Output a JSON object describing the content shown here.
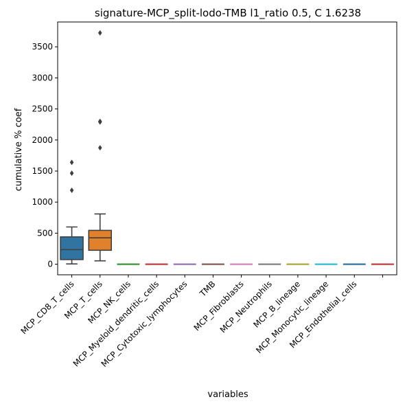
{
  "chart_data": {
    "type": "box",
    "title": "signature-MCP_split-lodo-TMB l1_ratio 0.5, C 1.6238",
    "xlabel": "variables",
    "ylabel": "cumulative % coef",
    "ylim": [
      -170,
      3900
    ],
    "yticks": [
      0,
      500,
      1000,
      1500,
      2000,
      2500,
      3000,
      3500
    ],
    "grid": false,
    "categories": [
      "MCP_CD8_T_cells",
      "MCP_T_cells",
      "MCP_NK_cells",
      "MCP_Myeloid_dendritic_cells",
      "MCP_Cytotoxic_lymphocytes",
      "TMB",
      "MCP_Fibroblasts",
      "MCP_Neutrophils",
      "MCP_B_lineage",
      "MCP_Monocytic_lineage",
      "MCP_Endothelial_cells",
      ""
    ],
    "boxes": [
      {
        "color": "#3274a1",
        "whisker_low": 5,
        "q1": 75,
        "median": 235,
        "q3": 440,
        "whisker_high": 600,
        "outliers": [
          1190,
          1465,
          1640
        ]
      },
      {
        "color": "#e1812c",
        "whisker_low": 55,
        "q1": 225,
        "median": 425,
        "q3": 545,
        "whisker_high": 810,
        "outliers": [
          1875,
          2290,
          2300,
          3725
        ]
      },
      {
        "color": "#3a923a",
        "whisker_low": 0,
        "q1": 0,
        "median": 0,
        "q3": 0,
        "whisker_high": 0,
        "outliers": []
      },
      {
        "color": "#c03d3e",
        "whisker_low": 0,
        "q1": 0,
        "median": 0,
        "q3": 0,
        "whisker_high": 0,
        "outliers": []
      },
      {
        "color": "#9372b2",
        "whisker_low": 0,
        "q1": 0,
        "median": 0,
        "q3": 0,
        "whisker_high": 0,
        "outliers": []
      },
      {
        "color": "#845b53",
        "whisker_low": 0,
        "q1": 0,
        "median": 0,
        "q3": 0,
        "whisker_high": 0,
        "outliers": []
      },
      {
        "color": "#d684bd",
        "whisker_low": 0,
        "q1": 0,
        "median": 0,
        "q3": 0,
        "whisker_high": 0,
        "outliers": []
      },
      {
        "color": "#7f7f7f",
        "whisker_low": 0,
        "q1": 0,
        "median": 0,
        "q3": 0,
        "whisker_high": 0,
        "outliers": []
      },
      {
        "color": "#a9aa35",
        "whisker_low": 0,
        "q1": 0,
        "median": 0,
        "q3": 0,
        "whisker_high": 0,
        "outliers": []
      },
      {
        "color": "#2ebcd0",
        "whisker_low": 0,
        "q1": 0,
        "median": 0,
        "q3": 0,
        "whisker_high": 0,
        "outliers": []
      },
      {
        "color": "#3274a1",
        "whisker_low": 0,
        "q1": 0,
        "median": 0,
        "q3": 0,
        "whisker_high": 0,
        "outliers": []
      },
      {
        "color": "#c03d3e",
        "whisker_low": 0,
        "q1": 0,
        "median": 0,
        "q3": 0,
        "whisker_high": 0,
        "outliers": []
      }
    ]
  }
}
